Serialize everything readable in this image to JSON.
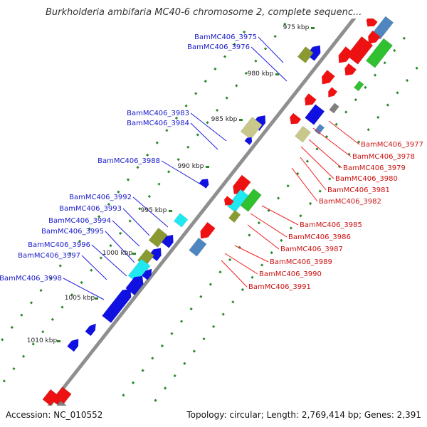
{
  "title": "Burkholderia ambifaria MC40-6 chromosome 2, complete sequenc...",
  "footer": {
    "accession": "Accession: NC_010552",
    "topology": "Topology: circular; Length: 2,769,414 bp; Genes: 2,391"
  },
  "ticks": [
    "975 kbp",
    "980 kbp",
    "985 kbp",
    "990 kbp",
    "995 kbp",
    "1000 kbp",
    "1005 kbp",
    "1010 kbp"
  ],
  "labels_left": [
    "BamMC406_3975",
    "BamMC406_3976",
    "BamMC406_3983",
    "BamMC406_3984",
    "BamMC406_3988",
    "BamMC406_3992",
    "BamMC406_3993",
    "BamMC406_3994",
    "BamMC406_3995",
    "BamMC406_3996",
    "BamMC406_3997",
    "BamMC406_3998"
  ],
  "labels_right": [
    "BamMC406_3977",
    "BamMC406_3978",
    "BamMC406_3979",
    "BamMC406_3980",
    "BamMC406_3981",
    "BamMC406_3982",
    "BamMC406_3985",
    "BamMC406_3986",
    "BamMC406_3987",
    "BamMC406_3989",
    "BamMC406_3990",
    "BamMC406_3991"
  ],
  "colors": {
    "forward": "#1010e0",
    "reverse": "#ee1111",
    "olive": "#8a9a30",
    "khaki": "#c8c88a",
    "cyan": "#20e8f0",
    "steel": "#4f86bf",
    "gray": "#808080",
    "green": "#30c030",
    "backbone": "#8f8f8f",
    "leader_left": "#2020dd",
    "leader_right": "#ee2020",
    "dots": "#2a8a2a"
  }
}
